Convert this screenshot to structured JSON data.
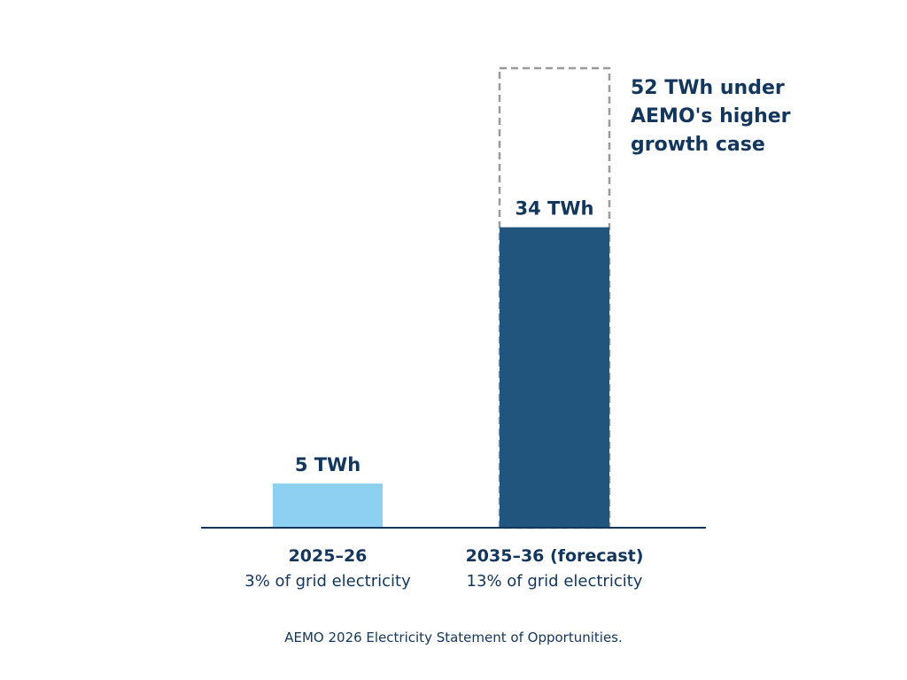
{
  "chart_data": {
    "type": "bar",
    "title": "",
    "xlabel": "",
    "ylabel": "",
    "unit": "TWh",
    "ylim": [
      0,
      52
    ],
    "grid": false,
    "categories": [
      "2025–26",
      "2035–36 (forecast)"
    ],
    "category_notes": [
      "3% of grid electricity",
      "13% of grid electricity"
    ],
    "values": [
      5,
      34
    ],
    "value_labels": [
      "5 TWh",
      "34 TWh"
    ],
    "colors": [
      "#8dd0f2",
      "#21557e"
    ],
    "scenario": {
      "category": "2035–36 (forecast)",
      "value": 52,
      "style": "dashed-outline",
      "color": "#9a9a9a",
      "annotation_lines": [
        "52 TWh under",
        "AEMO's higher",
        "growth case"
      ]
    }
  },
  "footer": {
    "source": "AEMO 2026 Electricity Statement of Opportunities."
  }
}
